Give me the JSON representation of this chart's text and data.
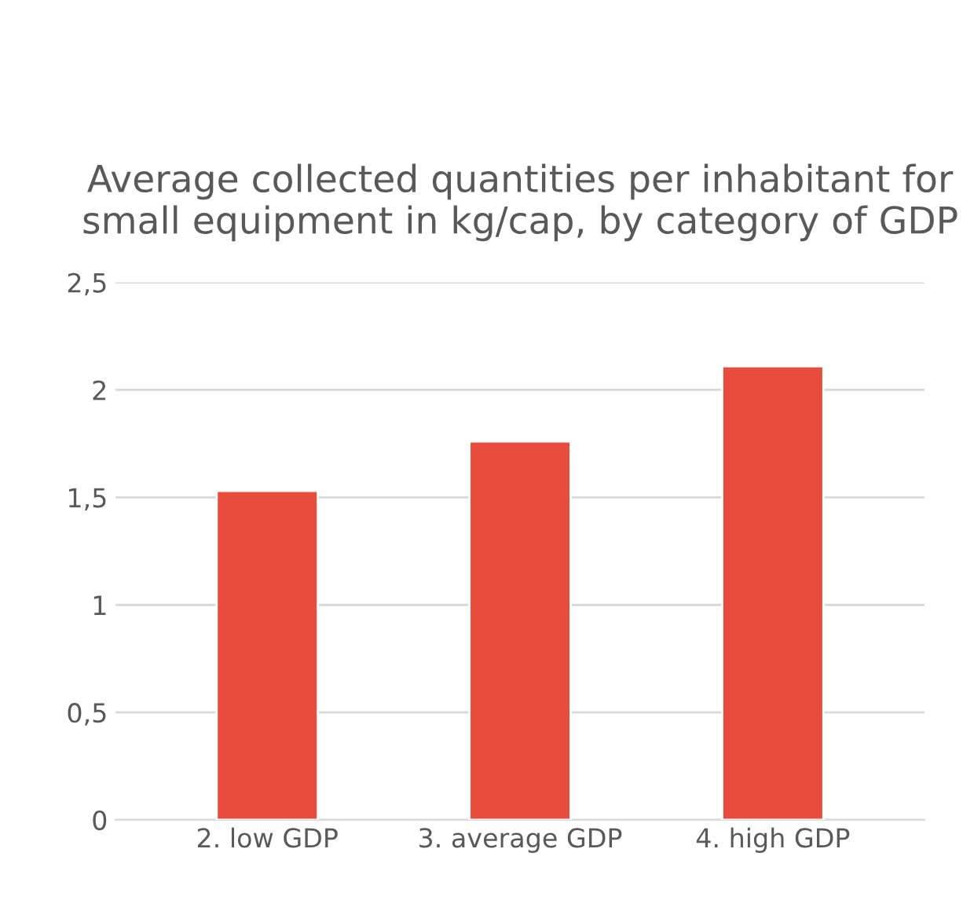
{
  "chart_data": {
    "type": "bar",
    "title": "Average collected quantities per inhabitant for small equipment in kg/cap, by category of GDP",
    "categories": [
      "2. low GDP",
      "3. average GDP",
      "4. high GDP"
    ],
    "values": [
      1.53,
      1.76,
      2.11
    ],
    "color": "#e84c3d",
    "ylim": [
      0,
      2.5
    ],
    "yticks": [
      0,
      {
        "value": 0.5,
        "label": "0,5"
      },
      1,
      {
        "value": 1.5,
        "label": "1,5"
      },
      2,
      {
        "value": 2.5,
        "label": "2,5"
      }
    ],
    "grid": "y"
  }
}
